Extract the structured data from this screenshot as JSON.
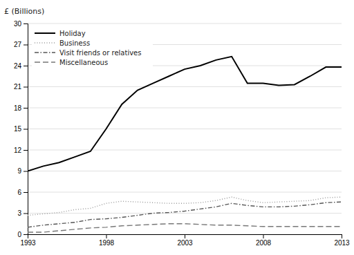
{
  "chart_data": {
    "type": "line",
    "ylabel": "£ (Billions)",
    "x": [
      1993,
      1994,
      1995,
      1996,
      1997,
      1998,
      1999,
      2000,
      2001,
      2002,
      2003,
      2004,
      2005,
      2006,
      2007,
      2008,
      2009,
      2010,
      2011,
      2012,
      2013
    ],
    "series": [
      {
        "name": "Holiday",
        "color": "#000000",
        "line_style": "solid",
        "values": [
          9.0,
          9.7,
          10.2,
          11.0,
          11.8,
          15.0,
          18.5,
          20.5,
          21.5,
          22.5,
          23.5,
          24.0,
          24.8,
          25.3,
          21.5,
          21.5,
          21.2,
          21.3,
          22.5,
          23.8,
          23.8
        ]
      },
      {
        "name": "Business",
        "color": "#999999",
        "line_style": "dotted",
        "values": [
          2.7,
          2.9,
          3.1,
          3.5,
          3.7,
          4.4,
          4.7,
          4.6,
          4.5,
          4.4,
          4.4,
          4.5,
          4.8,
          5.3,
          4.8,
          4.5,
          4.6,
          4.7,
          4.8,
          5.2,
          5.3
        ]
      },
      {
        "name": "Visit friends or relatives",
        "color": "#555555",
        "line_style": "dashdot",
        "values": [
          1.0,
          1.3,
          1.5,
          1.7,
          2.1,
          2.2,
          2.4,
          2.7,
          3.0,
          3.1,
          3.3,
          3.6,
          3.9,
          4.4,
          4.1,
          3.9,
          3.9,
          4.0,
          4.2,
          4.5,
          4.6
        ]
      },
      {
        "name": "Miscellaneous",
        "color": "#777777",
        "line_style": "dashed",
        "values": [
          0.3,
          0.3,
          0.5,
          0.7,
          0.9,
          1.0,
          1.2,
          1.3,
          1.4,
          1.5,
          1.5,
          1.4,
          1.3,
          1.3,
          1.2,
          1.1,
          1.1,
          1.1,
          1.1,
          1.1,
          1.1
        ]
      }
    ],
    "xlim": [
      1993,
      2013
    ],
    "xticks": [
      1993,
      1998,
      2003,
      2008,
      2013
    ],
    "ylim": [
      0,
      30
    ],
    "yticks": [
      0,
      3,
      6,
      9,
      12,
      15,
      18,
      21,
      24,
      27,
      30
    ],
    "grid": true,
    "legend": "upper left"
  }
}
